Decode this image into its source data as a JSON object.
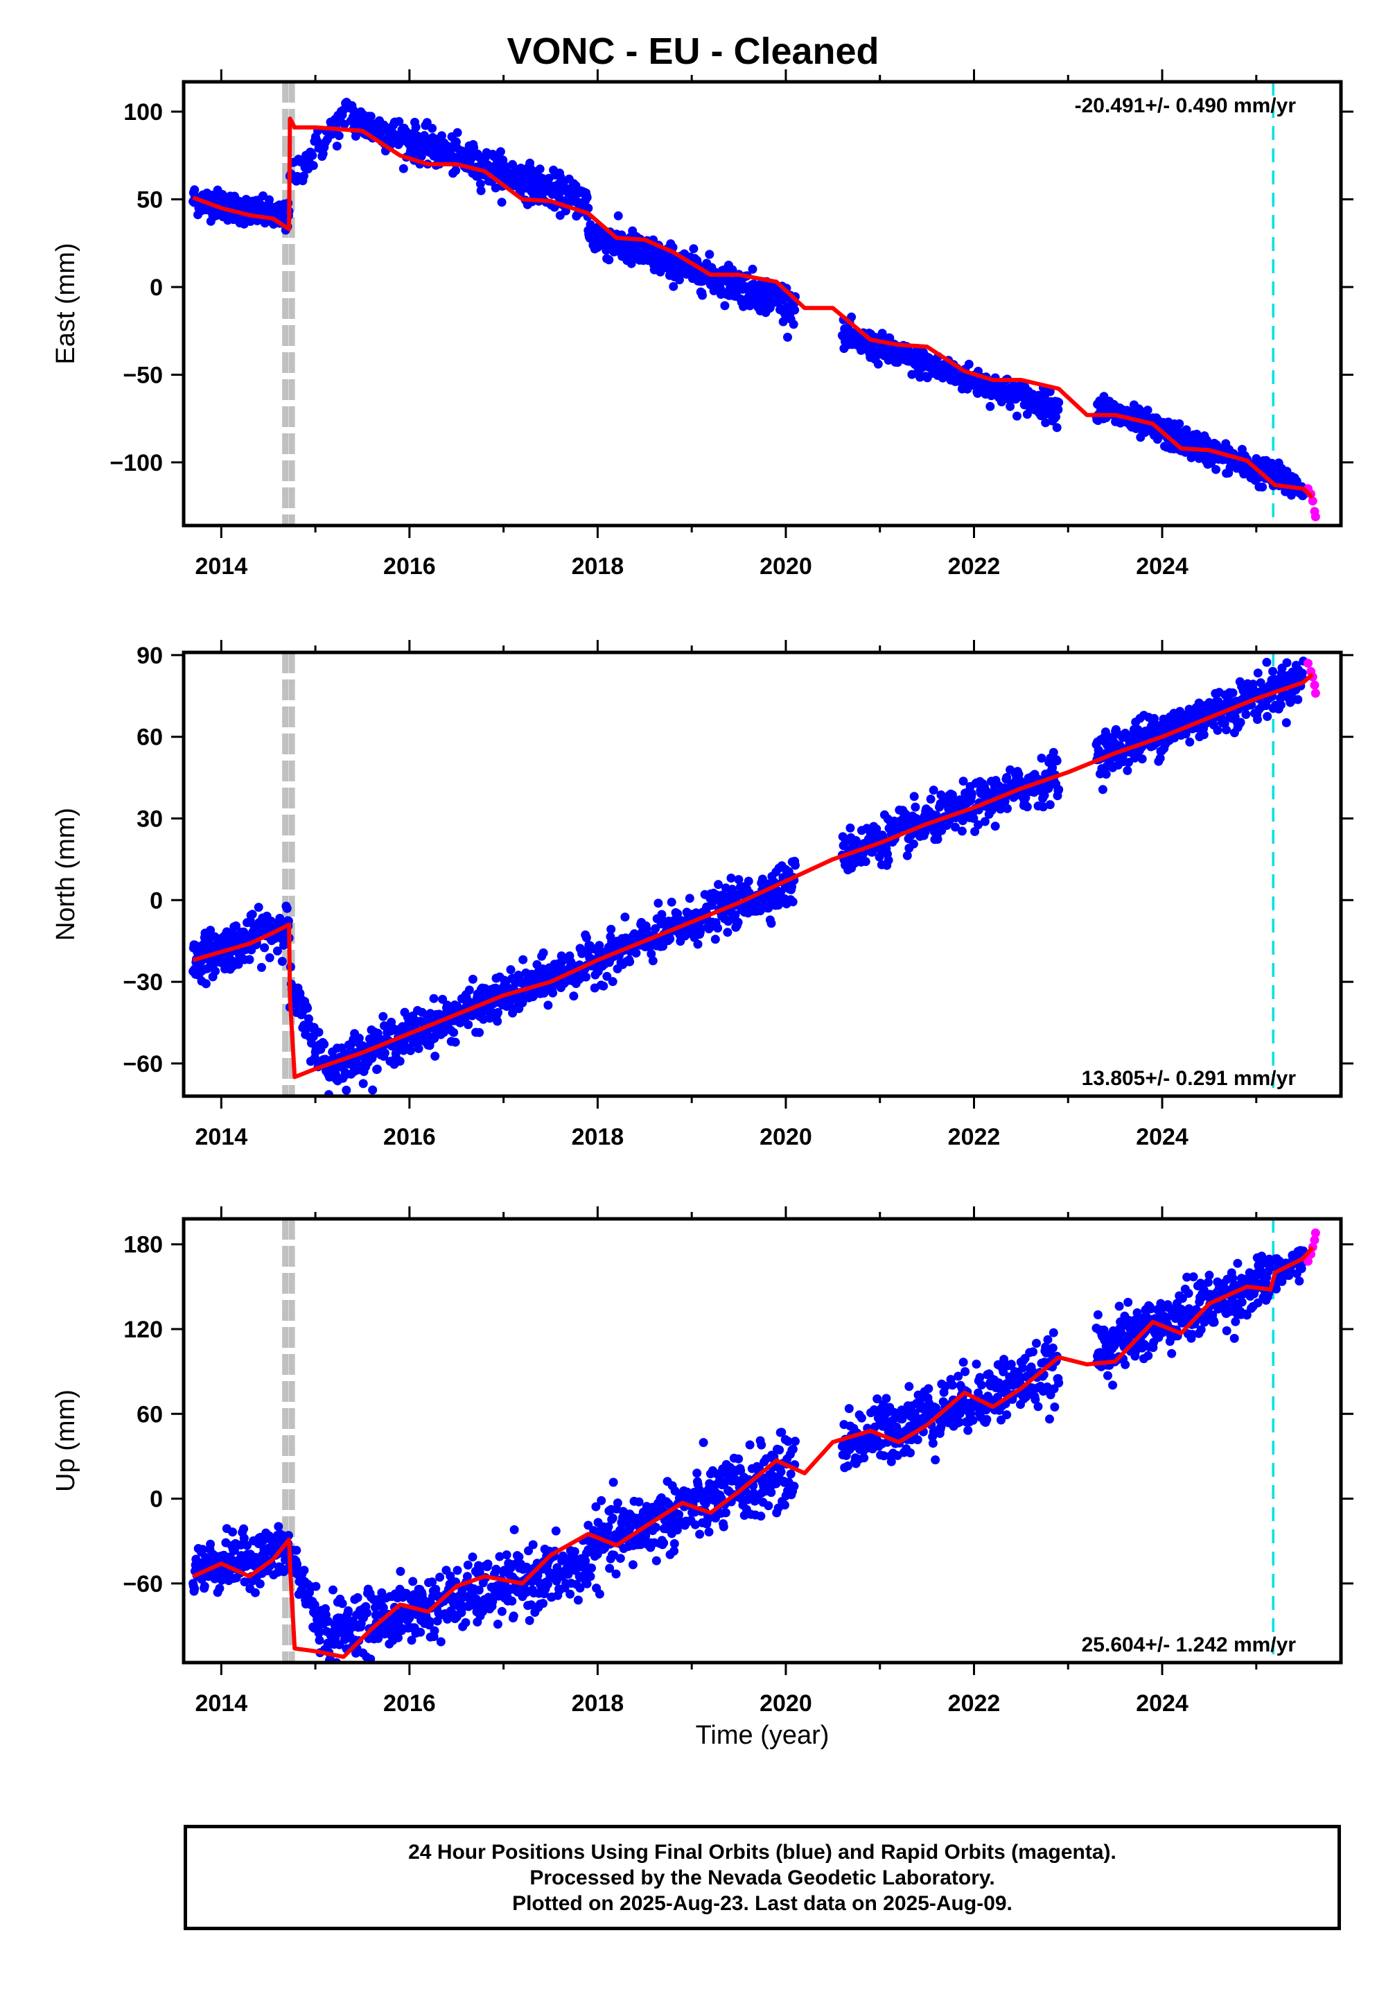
{
  "title": "VONC  - EU - Cleaned",
  "xlabel": "Time (year)",
  "footer": {
    "line1": "24 Hour Positions Using Final Orbits (blue) and Rapid Orbits (magenta).",
    "line2": "Processed by the Nevada Geodetic Laboratory.",
    "line3": "Plotted on 2025-Aug-23. Last data on 2025-Aug-09."
  },
  "colors": {
    "final_orbits": "#0000ff",
    "rapid_orbits": "#ff00ff",
    "model_fit": "#ff0000",
    "equipment_change": "#c0c0c0",
    "event_line": "#00e0e0"
  },
  "chart_data": [
    {
      "type": "scatter",
      "name": "east",
      "ylabel": "East (mm)",
      "rate_label": "-20.491+/- 0.490 mm/yr",
      "rate_position": "top-right",
      "xlim": [
        2013.6,
        2025.9
      ],
      "ylim": [
        -136,
        117
      ],
      "x_ticks": [
        2014,
        2016,
        2018,
        2020,
        2022,
        2024
      ],
      "y_ticks": [
        100,
        50,
        0,
        -50,
        -100
      ],
      "y_tick_labels": [
        "100",
        "50",
        "0",
        "−50",
        "−100"
      ],
      "equipment_change_x": [
        2014.68,
        2014.75
      ],
      "event_x": 2025.18,
      "fit": {
        "x": [
          2013.7,
          2014.0,
          2014.3,
          2014.55,
          2014.72,
          2014.73,
          2014.78,
          2015.0,
          2015.5,
          2015.9,
          2016.2,
          2016.5,
          2016.8,
          2017.2,
          2017.5,
          2017.9,
          2018.2,
          2018.5,
          2018.8,
          2019.2,
          2019.5,
          2019.9,
          2020.2,
          2020.5,
          2020.9,
          2021.2,
          2021.5,
          2021.9,
          2022.2,
          2022.5,
          2022.9,
          2023.2,
          2023.5,
          2023.9,
          2024.2,
          2024.5,
          2024.9,
          2025.2,
          2025.21,
          2025.5,
          2025.6
        ],
        "y": [
          51,
          45,
          41,
          39,
          33,
          96,
          91,
          91,
          89,
          75,
          70,
          70,
          66,
          50,
          49,
          42,
          28,
          27,
          20,
          7,
          7,
          3,
          -12,
          -12,
          -30,
          -33,
          -34,
          -48,
          -53,
          -53,
          -58,
          -73,
          -73,
          -78,
          -92,
          -93,
          -99,
          -113,
          -113,
          -115,
          -120
        ]
      },
      "trend_segments": [
        {
          "x": [
            2013.7,
            2014.72
          ],
          "y": [
            50,
            39
          ],
          "spread": 4,
          "n": 200
        },
        {
          "x": [
            2014.73,
            2015.4
          ],
          "y": [
            62,
            102
          ],
          "spread": 5,
          "n": 60
        },
        {
          "x": [
            2015.4,
            2017.9
          ],
          "y": [
            95,
            48
          ],
          "spread": 5,
          "n": 420
        },
        {
          "x": [
            2017.9,
            2020.1
          ],
          "y": [
            30,
            -10
          ],
          "spread": 5,
          "n": 380
        },
        {
          "x": [
            2020.6,
            2022.9
          ],
          "y": [
            -28,
            -70
          ],
          "spread": 4,
          "n": 380
        },
        {
          "x": [
            2023.3,
            2025.5
          ],
          "y": [
            -68,
            -115
          ],
          "spread": 4,
          "n": 380
        }
      ],
      "rapid": {
        "x": [
          2025.55,
          2025.58,
          2025.6,
          2025.62,
          2025.63
        ],
        "y": [
          -115,
          -118,
          -122,
          -128,
          -131
        ]
      }
    },
    {
      "type": "scatter",
      "name": "north",
      "ylabel": "North (mm)",
      "rate_label": "13.805+/- 0.291 mm/yr",
      "rate_position": "bottom-right",
      "xlim": [
        2013.6,
        2025.9
      ],
      "ylim": [
        -72,
        91
      ],
      "x_ticks": [
        2014,
        2016,
        2018,
        2020,
        2022,
        2024
      ],
      "y_ticks": [
        90,
        60,
        30,
        0,
        -30,
        -60
      ],
      "y_tick_labels": [
        "90",
        "60",
        "30",
        "0",
        "−30",
        "−60"
      ],
      "equipment_change_x": [
        2014.68,
        2014.75
      ],
      "event_x": 2025.18,
      "fit": {
        "x": [
          2013.7,
          2014.0,
          2014.3,
          2014.55,
          2014.72,
          2014.73,
          2014.78,
          2015.0,
          2015.5,
          2016.0,
          2016.5,
          2017.0,
          2017.5,
          2018.0,
          2018.5,
          2019.0,
          2019.5,
          2020.0,
          2020.5,
          2021.0,
          2021.5,
          2022.0,
          2022.5,
          2023.0,
          2023.5,
          2024.0,
          2024.5,
          2025.0,
          2025.5,
          2025.6
        ],
        "y": [
          -22,
          -19,
          -16,
          -12,
          -9,
          -36,
          -65,
          -62,
          -56,
          -49,
          -42,
          -35,
          -30,
          -22,
          -15,
          -8,
          -1,
          7,
          15,
          21,
          28,
          34,
          41,
          47,
          54,
          60,
          67,
          74,
          80,
          83
        ]
      },
      "trend_segments": [
        {
          "x": [
            2013.7,
            2014.72
          ],
          "y": [
            -22,
            -9
          ],
          "spread": 4,
          "n": 200
        },
        {
          "x": [
            2014.73,
            2015.15
          ],
          "y": [
            -33,
            -63
          ],
          "spread": 4,
          "n": 60
        },
        {
          "x": [
            2015.15,
            2020.1
          ],
          "y": [
            -61,
            7
          ],
          "spread": 4,
          "n": 800
        },
        {
          "x": [
            2020.6,
            2022.9
          ],
          "y": [
            17,
            46
          ],
          "spread": 4,
          "n": 380
        },
        {
          "x": [
            2023.3,
            2025.5
          ],
          "y": [
            53,
            81
          ],
          "spread": 4,
          "n": 380
        }
      ],
      "rapid": {
        "x": [
          2025.55,
          2025.58,
          2025.6,
          2025.62,
          2025.63
        ],
        "y": [
          87,
          84,
          82,
          79,
          76
        ]
      }
    },
    {
      "type": "scatter",
      "name": "up",
      "ylabel": "Up (mm)",
      "rate_label": "25.604+/- 1.242 mm/yr",
      "rate_position": "bottom-right",
      "xlim": [
        2013.6,
        2025.9
      ],
      "ylim": [
        -116,
        198
      ],
      "x_ticks": [
        2014,
        2016,
        2018,
        2020,
        2022,
        2024
      ],
      "y_ticks": [
        180,
        120,
        60,
        0,
        -60
      ],
      "y_tick_labels": [
        "180",
        "120",
        "60",
        "0",
        "−60"
      ],
      "equipment_change_x": [
        2014.68,
        2014.75
      ],
      "event_x": 2025.18,
      "fit": {
        "x": [
          2013.7,
          2014.0,
          2014.3,
          2014.55,
          2014.72,
          2014.73,
          2014.78,
          2015.0,
          2015.3,
          2015.6,
          2015.9,
          2016.2,
          2016.5,
          2016.8,
          2017.2,
          2017.5,
          2017.9,
          2018.2,
          2018.5,
          2018.9,
          2019.2,
          2019.5,
          2019.9,
          2020.2,
          2020.5,
          2020.9,
          2021.2,
          2021.5,
          2021.9,
          2022.2,
          2022.5,
          2022.9,
          2023.2,
          2023.5,
          2023.9,
          2024.2,
          2024.5,
          2024.9,
          2025.15,
          2025.2,
          2025.5,
          2025.6
        ],
        "y": [
          -55,
          -46,
          -55,
          -43,
          -29,
          -47,
          -106,
          -108,
          -112,
          -92,
          -75,
          -80,
          -62,
          -55,
          -60,
          -40,
          -25,
          -33,
          -20,
          -3,
          -10,
          5,
          27,
          18,
          40,
          48,
          40,
          52,
          75,
          65,
          78,
          100,
          95,
          97,
          125,
          117,
          138,
          150,
          148,
          160,
          170,
          178
        ]
      },
      "trend_segments": [
        {
          "x": [
            2013.7,
            2014.72
          ],
          "y": [
            -50,
            -38
          ],
          "spread": 9,
          "n": 200
        },
        {
          "x": [
            2014.73,
            2015.1
          ],
          "y": [
            -40,
            -95
          ],
          "spread": 9,
          "n": 60
        },
        {
          "x": [
            2015.1,
            2017.9
          ],
          "y": [
            -95,
            -48
          ],
          "spread": 11,
          "n": 450
        },
        {
          "x": [
            2017.9,
            2020.1
          ],
          "y": [
            -35,
            22
          ],
          "spread": 12,
          "n": 380
        },
        {
          "x": [
            2020.6,
            2022.9
          ],
          "y": [
            38,
            92
          ],
          "spread": 11,
          "n": 380
        },
        {
          "x": [
            2023.3,
            2025.15
          ],
          "y": [
            105,
            155
          ],
          "spread": 10,
          "n": 320
        },
        {
          "x": [
            2025.2,
            2025.5
          ],
          "y": [
            158,
            170
          ],
          "spread": 5,
          "n": 50
        }
      ],
      "rapid": {
        "x": [
          2025.55,
          2025.58,
          2025.6,
          2025.62,
          2025.63
        ],
        "y": [
          168,
          173,
          178,
          183,
          188
        ]
      }
    }
  ]
}
